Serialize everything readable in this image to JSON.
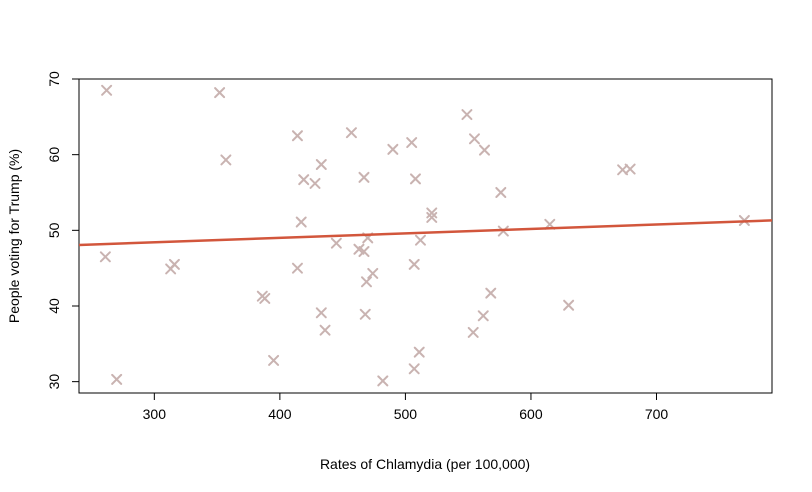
{
  "chart_data": {
    "type": "scatter",
    "title": "",
    "xlabel": "Rates of Chlamydia (per 100,000)",
    "ylabel": "People voting for Trump (%)",
    "xlim": [
      240,
      792
    ],
    "ylim": [
      28.5,
      70
    ],
    "xticks": [
      300,
      400,
      500,
      600,
      700
    ],
    "yticks": [
      30,
      40,
      50,
      60,
      70
    ],
    "grid": false,
    "marker": "x",
    "colors": {
      "points": "#c9b3b1",
      "fit_line": "#d2563c",
      "axis": "#000000"
    },
    "points": [
      {
        "x": 262,
        "y": 68.5
      },
      {
        "x": 261,
        "y": 46.5
      },
      {
        "x": 270,
        "y": 30.3
      },
      {
        "x": 313,
        "y": 44.9
      },
      {
        "x": 316,
        "y": 45.5
      },
      {
        "x": 352,
        "y": 68.2
      },
      {
        "x": 357,
        "y": 59.3
      },
      {
        "x": 386,
        "y": 41.3
      },
      {
        "x": 388,
        "y": 41.0
      },
      {
        "x": 395,
        "y": 32.8
      },
      {
        "x": 414,
        "y": 62.5
      },
      {
        "x": 414,
        "y": 45.0
      },
      {
        "x": 417,
        "y": 51.1
      },
      {
        "x": 419,
        "y": 56.7
      },
      {
        "x": 428,
        "y": 56.2
      },
      {
        "x": 433,
        "y": 58.7
      },
      {
        "x": 433,
        "y": 39.1
      },
      {
        "x": 436,
        "y": 36.8
      },
      {
        "x": 445,
        "y": 48.3
      },
      {
        "x": 457,
        "y": 62.9
      },
      {
        "x": 463,
        "y": 47.5
      },
      {
        "x": 467,
        "y": 47.2
      },
      {
        "x": 467,
        "y": 57.0
      },
      {
        "x": 468,
        "y": 38.9
      },
      {
        "x": 469,
        "y": 43.2
      },
      {
        "x": 470,
        "y": 49.0
      },
      {
        "x": 474,
        "y": 44.3
      },
      {
        "x": 482,
        "y": 30.1
      },
      {
        "x": 490,
        "y": 60.7
      },
      {
        "x": 505,
        "y": 61.6
      },
      {
        "x": 507,
        "y": 45.5
      },
      {
        "x": 508,
        "y": 56.8
      },
      {
        "x": 507,
        "y": 31.7
      },
      {
        "x": 511,
        "y": 33.9
      },
      {
        "x": 512,
        "y": 48.7
      },
      {
        "x": 521,
        "y": 52.3
      },
      {
        "x": 521,
        "y": 51.7
      },
      {
        "x": 549,
        "y": 65.3
      },
      {
        "x": 554,
        "y": 36.5
      },
      {
        "x": 555,
        "y": 62.1
      },
      {
        "x": 562,
        "y": 38.7
      },
      {
        "x": 563,
        "y": 60.6
      },
      {
        "x": 568,
        "y": 41.7
      },
      {
        "x": 576,
        "y": 55.0
      },
      {
        "x": 578,
        "y": 49.9
      },
      {
        "x": 615,
        "y": 50.8
      },
      {
        "x": 630,
        "y": 40.1
      },
      {
        "x": 673,
        "y": 58.0
      },
      {
        "x": 679,
        "y": 58.1
      },
      {
        "x": 770,
        "y": 51.3
      }
    ],
    "fit_line": {
      "intercept": 46.65,
      "slope": 0.00589
    }
  }
}
